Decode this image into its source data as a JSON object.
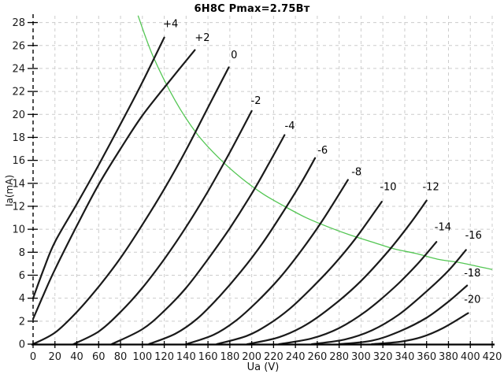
{
  "chart_data": {
    "type": "line",
    "title": "6Н8С Pmax=2.75Вт",
    "xlabel": "Ua (V)",
    "ylabel": "Ia(mA)",
    "xlim": [
      0,
      420
    ],
    "ylim": [
      0,
      28
    ],
    "grid": true,
    "x_ticks": [
      0,
      20,
      40,
      60,
      80,
      100,
      120,
      140,
      160,
      180,
      200,
      220,
      240,
      260,
      280,
      300,
      320,
      340,
      360,
      380,
      400,
      420
    ],
    "y_ticks": [
      0,
      2,
      4,
      6,
      8,
      10,
      12,
      14,
      16,
      18,
      20,
      22,
      24,
      26,
      28
    ],
    "curve_color": "#1a1a1a",
    "grid_color": "#cccccc",
    "axis_color": "#000000",
    "tick_label_color": "#1a1a1a",
    "power_limit": {
      "watts": 2.75,
      "color": "#53c653",
      "points": [
        [
          96,
          28.6
        ],
        [
          110,
          25.0
        ],
        [
          130,
          21.2
        ],
        [
          150,
          18.3
        ],
        [
          170,
          16.2
        ],
        [
          190,
          14.5
        ],
        [
          210,
          13.1
        ],
        [
          230,
          12.0
        ],
        [
          250,
          11.0
        ],
        [
          270,
          10.2
        ],
        [
          290,
          9.5
        ],
        [
          310,
          8.9
        ],
        [
          330,
          8.3
        ],
        [
          350,
          7.9
        ],
        [
          370,
          7.4
        ],
        [
          390,
          7.1
        ],
        [
          410,
          6.7
        ],
        [
          420,
          6.5
        ]
      ]
    },
    "series": [
      {
        "label": "+4",
        "grid_voltage": 4,
        "label_at": [
          123,
          27.6
        ],
        "points": [
          [
            0,
            4.0
          ],
          [
            10,
            6.6
          ],
          [
            20,
            8.9
          ],
          [
            40,
            12.2
          ],
          [
            60,
            15.6
          ],
          [
            83,
            19.7
          ],
          [
            100,
            22.8
          ],
          [
            120,
            26.7
          ]
        ]
      },
      {
        "label": "+2",
        "grid_voltage": 2,
        "label_at": [
          152,
          26.4
        ],
        "points": [
          [
            0,
            2.2
          ],
          [
            10,
            4.4
          ],
          [
            20,
            6.5
          ],
          [
            40,
            10.3
          ],
          [
            60,
            13.9
          ],
          [
            80,
            17.0
          ],
          [
            100,
            19.9
          ],
          [
            124,
            22.8
          ],
          [
            148,
            25.6
          ]
        ]
      },
      {
        "label": "0",
        "grid_voltage": 0,
        "label_at": [
          181,
          24.9
        ],
        "points": [
          [
            0,
            0
          ],
          [
            20,
            1.0
          ],
          [
            40,
            2.8
          ],
          [
            60,
            5.0
          ],
          [
            80,
            7.5
          ],
          [
            100,
            10.4
          ],
          [
            120,
            13.5
          ],
          [
            140,
            16.9
          ],
          [
            160,
            20.6
          ],
          [
            179,
            24.1
          ]
        ]
      },
      {
        "label": "-2",
        "grid_voltage": -2,
        "label_at": [
          201,
          20.9
        ],
        "points": [
          [
            37,
            0
          ],
          [
            60,
            1.1
          ],
          [
            80,
            2.8
          ],
          [
            100,
            4.9
          ],
          [
            120,
            7.4
          ],
          [
            140,
            10.2
          ],
          [
            160,
            13.3
          ],
          [
            180,
            16.7
          ],
          [
            200,
            20.3
          ]
        ]
      },
      {
        "label": "-4",
        "grid_voltage": -4,
        "label_at": [
          232,
          18.7
        ],
        "points": [
          [
            72,
            0
          ],
          [
            100,
            1.3
          ],
          [
            120,
            2.9
          ],
          [
            140,
            4.9
          ],
          [
            160,
            7.4
          ],
          [
            180,
            10.1
          ],
          [
            200,
            13.1
          ],
          [
            215,
            15.6
          ],
          [
            230,
            18.2
          ]
        ]
      },
      {
        "label": "-6",
        "grid_voltage": -6,
        "label_at": [
          262,
          16.6
        ],
        "points": [
          [
            106,
            0
          ],
          [
            130,
            0.9
          ],
          [
            150,
            2.2
          ],
          [
            170,
            4.1
          ],
          [
            190,
            6.3
          ],
          [
            210,
            8.8
          ],
          [
            230,
            11.7
          ],
          [
            245,
            14.0
          ],
          [
            258,
            16.2
          ]
        ]
      },
      {
        "label": "-8",
        "grid_voltage": -8,
        "label_at": [
          293,
          14.7
        ],
        "points": [
          [
            140,
            0
          ],
          [
            165,
            0.8
          ],
          [
            185,
            2.0
          ],
          [
            205,
            3.7
          ],
          [
            225,
            5.7
          ],
          [
            245,
            8.1
          ],
          [
            265,
            10.8
          ],
          [
            288,
            14.3
          ]
        ]
      },
      {
        "label": "-10",
        "grid_voltage": -10,
        "label_at": [
          322,
          13.4
        ],
        "points": [
          [
            168,
            0
          ],
          [
            195,
            0.7
          ],
          [
            215,
            1.7
          ],
          [
            235,
            3.1
          ],
          [
            255,
            4.9
          ],
          [
            275,
            6.9
          ],
          [
            295,
            9.2
          ],
          [
            319,
            12.4
          ]
        ]
      },
      {
        "label": "-12",
        "grid_voltage": -12,
        "label_at": [
          361,
          13.4
        ],
        "points": [
          [
            196,
            0
          ],
          [
            225,
            0.6
          ],
          [
            250,
            1.7
          ],
          [
            275,
            3.4
          ],
          [
            300,
            5.5
          ],
          [
            325,
            8.1
          ],
          [
            345,
            10.5
          ],
          [
            360,
            12.5
          ]
        ]
      },
      {
        "label": "-14",
        "grid_voltage": -14,
        "label_at": [
          372,
          9.9
        ],
        "points": [
          [
            225,
            0
          ],
          [
            255,
            0.5
          ],
          [
            280,
            1.4
          ],
          [
            305,
            2.9
          ],
          [
            330,
            4.9
          ],
          [
            350,
            6.8
          ],
          [
            369,
            8.9
          ]
        ]
      },
      {
        "label": "-16",
        "grid_voltage": -16,
        "label_at": [
          400,
          9.2
        ],
        "points": [
          [
            255,
            0
          ],
          [
            285,
            0.4
          ],
          [
            310,
            1.2
          ],
          [
            335,
            2.6
          ],
          [
            360,
            4.6
          ],
          [
            380,
            6.4
          ],
          [
            396,
            8.2
          ]
        ]
      },
      {
        "label": "-18",
        "grid_voltage": -18,
        "label_at": [
          399,
          5.9
        ],
        "points": [
          [
            280,
            0
          ],
          [
            310,
            0.3
          ],
          [
            335,
            1.1
          ],
          [
            360,
            2.3
          ],
          [
            380,
            3.7
          ],
          [
            397,
            5.1
          ]
        ]
      },
      {
        "label": "-20",
        "grid_voltage": -20,
        "label_at": [
          399,
          3.6
        ],
        "points": [
          [
            310,
            0
          ],
          [
            335,
            0.2
          ],
          [
            355,
            0.6
          ],
          [
            375,
            1.4
          ],
          [
            398,
            2.7
          ]
        ]
      }
    ]
  }
}
